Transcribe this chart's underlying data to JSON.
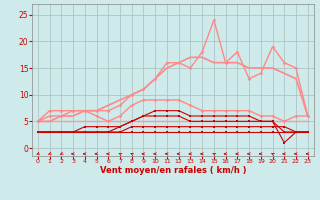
{
  "title": "",
  "xlabel": "Vent moyen/en rafales ( km/h )",
  "bg_color": "#ceeaea",
  "grid_color": "#aabbbb",
  "x_ticks": [
    0,
    1,
    2,
    3,
    4,
    5,
    6,
    7,
    8,
    9,
    10,
    11,
    12,
    13,
    14,
    15,
    16,
    17,
    18,
    19,
    20,
    21,
    22,
    23
  ],
  "y_ticks": [
    0,
    5,
    10,
    15,
    20,
    25
  ],
  "ylim": [
    -1.5,
    27
  ],
  "xlim": [
    -0.5,
    23.5
  ],
  "lines": [
    {
      "x": [
        0,
        1,
        2,
        3,
        4,
        5,
        6,
        7,
        8,
        9,
        10,
        11,
        12,
        13,
        14,
        15,
        16,
        17,
        18,
        19,
        20,
        21,
        22,
        23
      ],
      "y": [
        3,
        3,
        3,
        3,
        3,
        3,
        3,
        3,
        3,
        3,
        3,
        3,
        3,
        3,
        3,
        3,
        3,
        3,
        3,
        3,
        3,
        3,
        3,
        3
      ],
      "color": "#cc0000",
      "lw": 0.8,
      "marker": "s",
      "ms": 1.5,
      "zorder": 3
    },
    {
      "x": [
        0,
        1,
        2,
        3,
        4,
        5,
        6,
        7,
        8,
        9,
        10,
        11,
        12,
        13,
        14,
        15,
        16,
        17,
        18,
        19,
        20,
        21,
        22,
        23
      ],
      "y": [
        3,
        3,
        3,
        3,
        3,
        3,
        3,
        3,
        4,
        4,
        4,
        4,
        4,
        4,
        4,
        4,
        4,
        4,
        4,
        4,
        4,
        4,
        3,
        3
      ],
      "color": "#cc0000",
      "lw": 0.8,
      "marker": "s",
      "ms": 1.5,
      "zorder": 3
    },
    {
      "x": [
        0,
        1,
        2,
        3,
        4,
        5,
        6,
        7,
        8,
        9,
        10,
        11,
        12,
        13,
        14,
        15,
        16,
        17,
        18,
        19,
        20,
        21,
        22,
        23
      ],
      "y": [
        3,
        3,
        3,
        3,
        3,
        3,
        3,
        4,
        5,
        6,
        6,
        6,
        6,
        5,
        5,
        5,
        5,
        5,
        5,
        5,
        5,
        1,
        3,
        3
      ],
      "color": "#cc0000",
      "lw": 0.8,
      "marker": "s",
      "ms": 1.5,
      "zorder": 3
    },
    {
      "x": [
        0,
        1,
        2,
        3,
        4,
        5,
        6,
        7,
        8,
        9,
        10,
        11,
        12,
        13,
        14,
        15,
        16,
        17,
        18,
        19,
        20,
        21,
        22,
        23
      ],
      "y": [
        3,
        3,
        3,
        3,
        4,
        4,
        4,
        4,
        5,
        6,
        7,
        7,
        7,
        6,
        6,
        6,
        6,
        6,
        6,
        5,
        5,
        3,
        3,
        3
      ],
      "color": "#cc0000",
      "lw": 0.8,
      "marker": "s",
      "ms": 1.5,
      "zorder": 3
    },
    {
      "x": [
        0,
        1,
        2,
        3,
        4,
        5,
        6,
        7,
        8,
        9,
        10,
        11,
        12,
        13,
        14,
        15,
        16,
        17,
        18,
        19,
        20,
        21,
        22,
        23
      ],
      "y": [
        5,
        5,
        5,
        5,
        5,
        5,
        5,
        5,
        5,
        5,
        5,
        5,
        5,
        5,
        5,
        5,
        5,
        5,
        5,
        5,
        5,
        5,
        5,
        5
      ],
      "color": "#ff9999",
      "lw": 1.0,
      "marker": null,
      "ms": 0,
      "zorder": 2
    },
    {
      "x": [
        0,
        1,
        2,
        3,
        4,
        5,
        6,
        7,
        8,
        9,
        10,
        11,
        12,
        13,
        14,
        15,
        16,
        17,
        18,
        19,
        20,
        21,
        22,
        23
      ],
      "y": [
        5,
        6,
        6,
        7,
        7,
        7,
        7,
        8,
        10,
        11,
        13,
        16,
        16,
        15,
        18,
        24,
        16,
        18,
        13,
        14,
        19,
        16,
        15,
        6
      ],
      "color": "#ff8888",
      "lw": 1.0,
      "marker": "D",
      "ms": 1.8,
      "zorder": 2
    },
    {
      "x": [
        0,
        1,
        2,
        3,
        4,
        5,
        6,
        7,
        8,
        9,
        10,
        11,
        12,
        13,
        14,
        15,
        16,
        17,
        18,
        19,
        20,
        21,
        22,
        23
      ],
      "y": [
        5,
        5,
        6,
        6,
        7,
        7,
        8,
        9,
        10,
        11,
        13,
        15,
        16,
        17,
        17,
        16,
        16,
        16,
        15,
        15,
        15,
        14,
        13,
        6
      ],
      "color": "#ff8888",
      "lw": 1.2,
      "marker": null,
      "ms": 0,
      "zorder": 2
    },
    {
      "x": [
        0,
        1,
        2,
        3,
        4,
        5,
        6,
        7,
        8,
        9,
        10,
        11,
        12,
        13,
        14,
        15,
        16,
        17,
        18,
        19,
        20,
        21,
        22,
        23
      ],
      "y": [
        5,
        7,
        7,
        7,
        7,
        6,
        5,
        6,
        8,
        9,
        9,
        9,
        9,
        8,
        7,
        7,
        7,
        7,
        7,
        6,
        6,
        5,
        6,
        6
      ],
      "color": "#ff8888",
      "lw": 1.0,
      "marker": "D",
      "ms": 1.8,
      "zorder": 2
    }
  ],
  "wind_dirs": [
    225,
    225,
    225,
    270,
    270,
    270,
    270,
    315,
    315,
    270,
    270,
    270,
    270,
    270,
    270,
    315,
    270,
    270,
    270,
    270,
    315,
    270,
    270,
    270
  ],
  "xlabel_color": "#cc0000",
  "tick_color": "#cc0000",
  "spine_color": "#888888"
}
